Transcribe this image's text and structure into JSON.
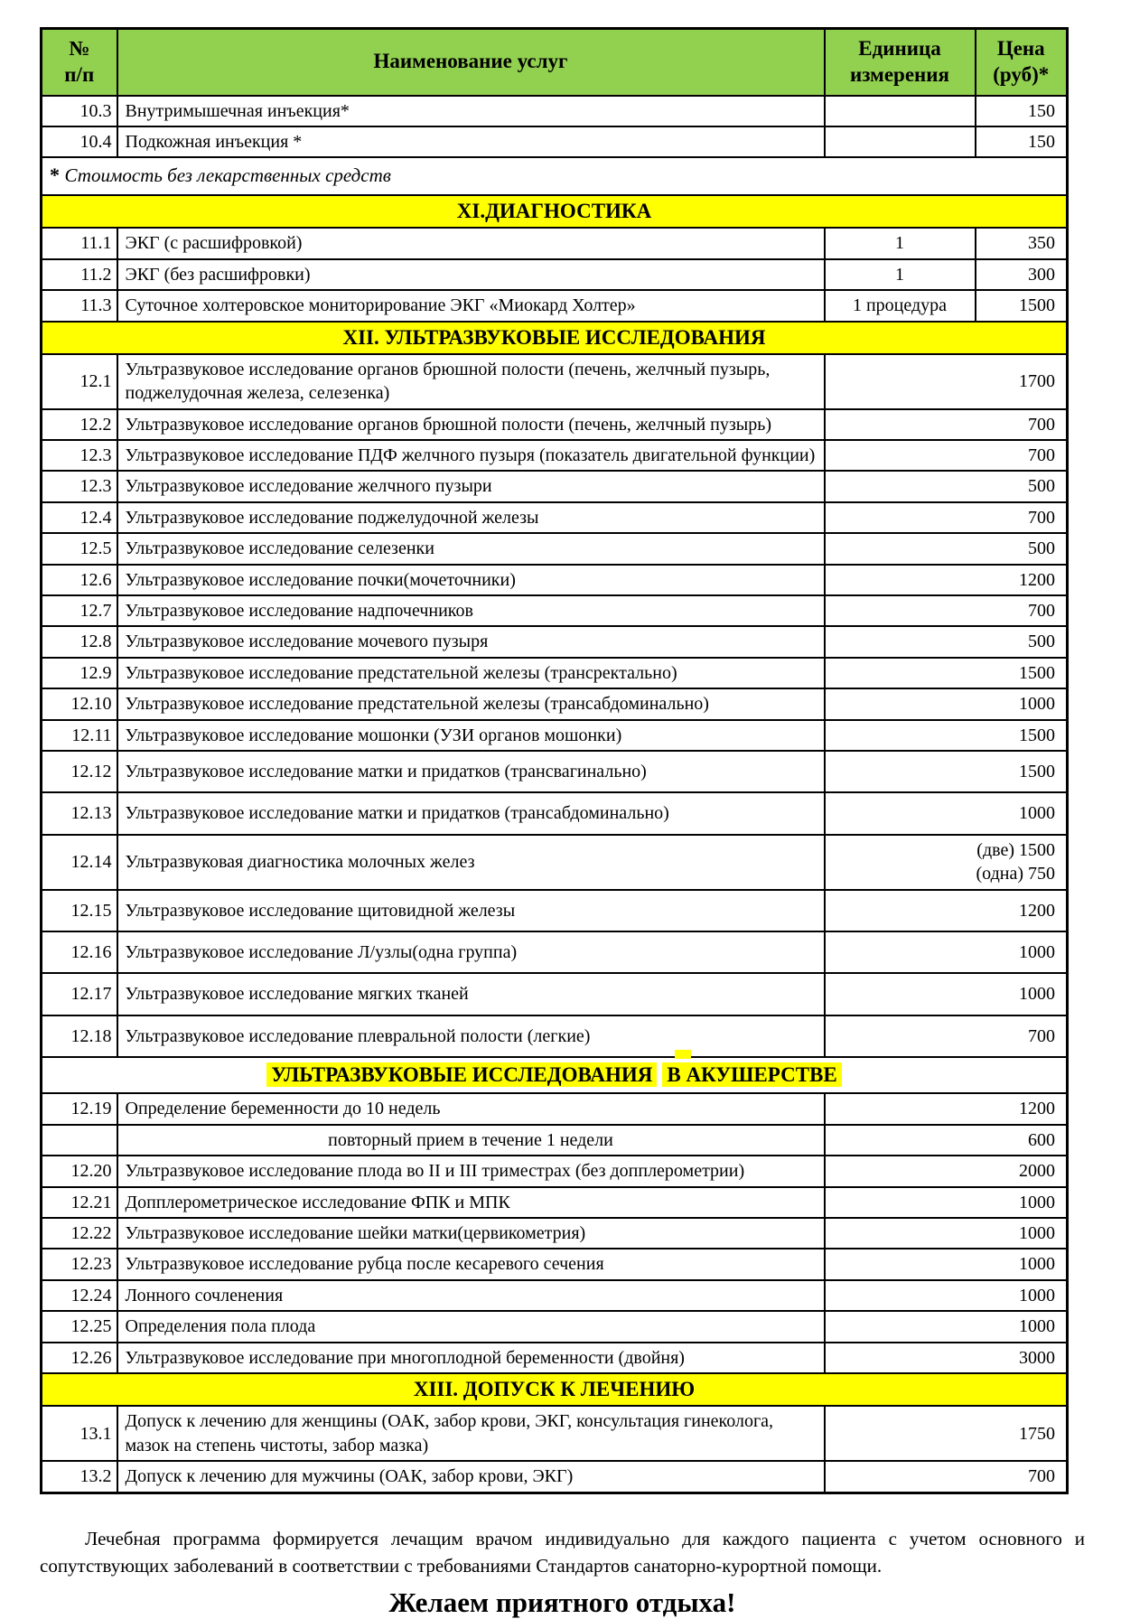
{
  "colors": {
    "header_green": "#92d050",
    "section_yellow": "#ffff00",
    "border_black": "#000000",
    "text_black": "#000000",
    "page_background": "#ffffff"
  },
  "table": {
    "columns": {
      "num": "№\nп/п",
      "name": "Наименование услуг",
      "unit": "Единица\nизмерения",
      "price": "Цена\n(руб)*"
    },
    "rows": [
      {
        "type": "item",
        "num": "10.3",
        "name": "Внутримышечная инъекция*",
        "unit": "",
        "price": "150"
      },
      {
        "type": "item",
        "num": "10.4",
        "name": "Подкожная инъекция *",
        "unit": "",
        "price": "150"
      },
      {
        "type": "note",
        "star": "*",
        "text": "Стоимость без лекарственных средств"
      },
      {
        "type": "section",
        "label": "XI.ДИАГНОСТИКА"
      },
      {
        "type": "item",
        "num": "11.1",
        "name": "ЭКГ (с расшифровкой)",
        "unit": "1",
        "price": "350"
      },
      {
        "type": "item",
        "num": "11.2",
        "name": "ЭКГ (без расшифровки)",
        "unit": "1",
        "price": "300"
      },
      {
        "type": "item",
        "num": "11.3",
        "name": "Суточное холтеровское мониторирование ЭКГ «Миокард Холтер»",
        "unit": "1 процедура",
        "price": "1500"
      },
      {
        "type": "section",
        "label": "XII. УЛЬТРАЗВУКОВЫЕ ИССЛЕДОВАНИЯ"
      },
      {
        "type": "item",
        "num": "12.1",
        "name": "Ультразвуковое исследование органов брюшной полости (печень, желчный пузырь, поджелудочная железа, селезенка)",
        "price": "1700"
      },
      {
        "type": "item",
        "num": "12.2",
        "name": "Ультразвуковое исследование органов брюшной полости (печень, желчный пузырь)",
        "price": "700"
      },
      {
        "type": "item",
        "num": "12.3",
        "name": "Ультразвуковое исследование ПДФ желчного пузыря (показатель двигательной функции)",
        "price": "700"
      },
      {
        "type": "item",
        "num": "12.3",
        "name": "Ультразвуковое исследование желчного пузыри",
        "price": "500"
      },
      {
        "type": "item",
        "num": "12.4",
        "name": "Ультразвуковое исследование поджелудочной железы",
        "price": "700"
      },
      {
        "type": "item",
        "num": "12.5",
        "name": "Ультразвуковое исследование селезенки",
        "price": "500"
      },
      {
        "type": "item",
        "num": "12.6",
        "name": "Ультразвуковое исследование почки(мочеточники)",
        "price": "1200"
      },
      {
        "type": "item",
        "num": "12.7",
        "name": "Ультразвуковое исследование надпочечников",
        "price": "700"
      },
      {
        "type": "item",
        "num": "12.8",
        "name": "Ультразвуковое исследование мочевого пузыря",
        "price": "500"
      },
      {
        "type": "item",
        "num": "12.9",
        "name": "Ультразвуковое исследование предстательной железы (трансректально)",
        "price": "1500"
      },
      {
        "type": "item",
        "num": "12.10",
        "name": "Ультразвуковое исследование предстательной железы (трансабдоминально)",
        "price": "1000"
      },
      {
        "type": "item",
        "num": "12.11",
        "name": "Ультразвуковое  исследование  мошонки (УЗИ органов мошонки)",
        "price": "1500"
      },
      {
        "type": "item",
        "num": "12.12",
        "name": "Ультразвуковое исследование матки и придатков (трансвагинально)",
        "price": "1500"
      },
      {
        "type": "item",
        "num": "12.13",
        "name": "Ультразвуковое исследование матки и придатков (трансабдоминально)",
        "price": "1000"
      },
      {
        "type": "item",
        "num": "12.14",
        "name": "Ультразвуковая  диагностика молочных желез",
        "price_lines": [
          "(две) 1500",
          "(одна)  750"
        ]
      },
      {
        "type": "item",
        "num": "12.15",
        "name": "Ультразвуковое исследование щитовидной железы",
        "price": "1200"
      },
      {
        "type": "item",
        "num": "12.16",
        "name": "Ультразвуковое исследование Л/узлы(одна группа)",
        "price": "1000"
      },
      {
        "type": "item",
        "num": "12.17",
        "name": "Ультразвуковое исследование мягких тканей",
        "price": "1000"
      },
      {
        "type": "item",
        "num": "12.18",
        "name": "Ультразвуковое исследование плевральной полости (легкие)",
        "price": "700"
      },
      {
        "type": "section_highlight",
        "parts": [
          "УЛЬТРАЗВУКОВЫЕ ИССЛЕДОВАНИЯ",
          "В АКУШЕРСТВЕ"
        ]
      },
      {
        "type": "item",
        "num": "12.19",
        "name": "Определение беременности до 10 недель",
        "price": "1200"
      },
      {
        "type": "item",
        "num": "",
        "name": "повторный прием в течение 1 недели",
        "center": true,
        "price": "600"
      },
      {
        "type": "item",
        "num": "12.20",
        "name": "Ультразвуковое исследование плода во II и III триместрах (без допплерометрии)",
        "price": "2000"
      },
      {
        "type": "item",
        "num": "12.21",
        "name": "Допплерометрическое исследование ФПК  и МПК",
        "price": "1000"
      },
      {
        "type": "item",
        "num": "12.22",
        "name": "Ультразвуковое исследование шейки матки(цервикометрия)",
        "price": "1000"
      },
      {
        "type": "item",
        "num": "12.23",
        "name": "Ультразвуковое исследование рубца после кесаревого сечения",
        "price": "1000"
      },
      {
        "type": "item",
        "num": "12.24",
        "name": "Лонного сочленения",
        "price": "1000"
      },
      {
        "type": "item",
        "num": "12.25",
        "name": "Определения пола плода",
        "price": "1000"
      },
      {
        "type": "item",
        "num": "12.26",
        "name": "Ультразвуковое исследование при многоплодной беременности (двойня)",
        "price": "3000"
      },
      {
        "type": "section",
        "label": "XIII. ДОПУСК К ЛЕЧЕНИЮ"
      },
      {
        "type": "item",
        "num": "13.1",
        "name": "Допуск к лечению для женщины (ОАК, забор крови, ЭКГ, консультация гинеколога, мазок на степень чистоты, забор мазка)",
        "price": "1750"
      },
      {
        "type": "item",
        "num": "13.2",
        "name": "Допуск к лечению для мужчины (ОАК, забор крови, ЭКГ)",
        "price": "700"
      }
    ]
  },
  "footer": {
    "paragraph": "Лечебная программа формируется лечащим врачом индивидуально для каждого пациента с учетом основного и сопутствующих заболеваний в соответствии с требованиями Стандартов санаторно-курортной помощи.",
    "wish": "Желаем приятного отдыха!"
  }
}
